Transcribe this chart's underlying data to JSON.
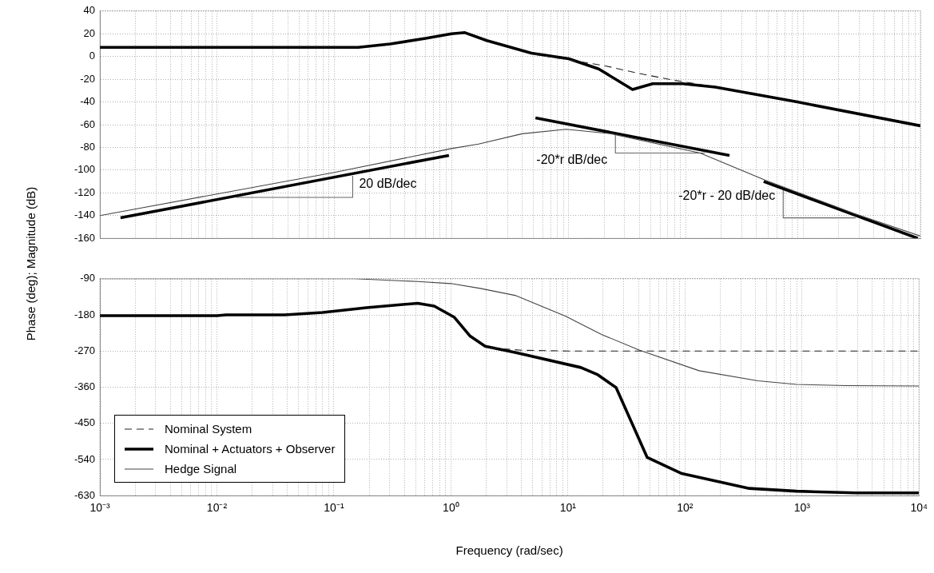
{
  "chart_data": [
    {
      "type": "line",
      "ylabel": "Phase (deg); Magnitude (dB)",
      "log": "x",
      "grid": true,
      "marker": "none",
      "tick_labels": "y",
      "xlim": [
        0.001,
        10000
      ],
      "xticks": [
        {
          "value": 0.001,
          "label": null
        },
        {
          "value": 0.002,
          "label": null
        },
        {
          "value": 0.003,
          "label": null
        },
        {
          "value": 0.004,
          "label": null
        },
        {
          "value": 0.005,
          "label": null
        },
        {
          "value": 0.006,
          "label": null
        },
        {
          "value": 0.007,
          "label": null
        },
        {
          "value": 0.008,
          "label": null
        },
        {
          "value": 0.009,
          "label": null
        },
        {
          "value": 0.01,
          "label": null
        },
        {
          "value": 0.02,
          "label": null
        },
        {
          "value": 0.03,
          "label": null
        },
        {
          "value": 0.04,
          "label": null
        },
        {
          "value": 0.05,
          "label": null
        },
        {
          "value": 0.06,
          "label": null
        },
        {
          "value": 0.07,
          "label": null
        },
        {
          "value": 0.08,
          "label": null
        },
        {
          "value": 0.09,
          "label": null
        },
        {
          "value": 0.1,
          "label": null
        },
        {
          "value": 0.2,
          "label": null
        },
        {
          "value": 0.3,
          "label": null
        },
        {
          "value": 0.4,
          "label": null
        },
        {
          "value": 0.5,
          "label": null
        },
        {
          "value": 0.6,
          "label": null
        },
        {
          "value": 0.7,
          "label": null
        },
        {
          "value": 0.8,
          "label": null
        },
        {
          "value": 0.9,
          "label": null
        },
        {
          "value": 1,
          "label": null
        },
        {
          "value": 2,
          "label": null
        },
        {
          "value": 3,
          "label": null
        },
        {
          "value": 4,
          "label": null
        },
        {
          "value": 5,
          "label": null
        },
        {
          "value": 6,
          "label": null
        },
        {
          "value": 7,
          "label": null
        },
        {
          "value": 8,
          "label": null
        },
        {
          "value": 9,
          "label": null
        },
        {
          "value": 10,
          "label": null
        },
        {
          "value": 20,
          "label": null
        },
        {
          "value": 30,
          "label": null
        },
        {
          "value": 40,
          "label": null
        },
        {
          "value": 50,
          "label": null
        },
        {
          "value": 60,
          "label": null
        },
        {
          "value": 70,
          "label": null
        },
        {
          "value": 80,
          "label": null
        },
        {
          "value": 90,
          "label": null
        },
        {
          "value": 100,
          "label": null
        },
        {
          "value": 200,
          "label": null
        },
        {
          "value": 300,
          "label": null
        },
        {
          "value": 400,
          "label": null
        },
        {
          "value": 500,
          "label": null
        },
        {
          "value": 600,
          "label": null
        },
        {
          "value": 700,
          "label": null
        },
        {
          "value": 800,
          "label": null
        },
        {
          "value": 900,
          "label": null
        },
        {
          "value": 1000,
          "label": null
        },
        {
          "value": 2000,
          "label": null
        },
        {
          "value": 3000,
          "label": null
        },
        {
          "value": 4000,
          "label": null
        },
        {
          "value": 5000,
          "label": null
        },
        {
          "value": 6000,
          "label": null
        },
        {
          "value": 7000,
          "label": null
        },
        {
          "value": 8000,
          "label": null
        },
        {
          "value": 9000,
          "label": null
        },
        {
          "value": 10000,
          "label": null
        }
      ],
      "ylim": [
        -160,
        40
      ],
      "yticks": [
        -160,
        -140,
        -120,
        -100,
        -80,
        -60,
        -40,
        -20,
        0,
        20,
        40
      ],
      "annotations": [
        {
          "text": "20 dB/dec",
          "x": 0.1435,
          "y": -105
        },
        {
          "text": "-20*r dB/dec",
          "x": 25,
          "y": -85
        },
        {
          "text": "-20*r - 20 dB/dec",
          "x": 675,
          "y": -117
        }
      ],
      "series": [
        {
          "color": "#222222",
          "line_style": "dashed",
          "x": [
            5,
            10,
            20,
            40,
            80,
            140
          ],
          "values": [
            2,
            -3,
            -8,
            -15,
            -21,
            -25
          ]
        },
        {
          "color": "#000000",
          "x": [
            0.001,
            0.01,
            0.1,
            0.16,
            0.3,
            0.6,
            1.0,
            1.3,
            2.0,
            4.8,
            10,
            18,
            35,
            52,
            94,
            178,
            890,
            10000
          ],
          "values": [
            8,
            8,
            8,
            8,
            11,
            16,
            20,
            21,
            14,
            3,
            -2,
            -11,
            -29,
            -24,
            -24,
            -27,
            -40,
            -61
          ]
        },
        {
          "color": "#444444",
          "x": [
            0.001,
            0.01,
            0.1,
            1,
            1.7,
            4,
            9.5,
            23,
            132,
            480,
            2700,
            10000
          ],
          "values": [
            -140,
            -121,
            -102,
            -81,
            -77,
            -68,
            -64,
            -68,
            -85,
            -109,
            -138,
            -158
          ]
        },
        {
          "color": "#000000",
          "x": [
            0.0015,
            0.95
          ],
          "values": [
            -142,
            -87
          ]
        },
        {
          "color": "#000000",
          "x": [
            5.2,
            235
          ],
          "values": [
            -54,
            -87
          ]
        },
        {
          "color": "#000000",
          "x": [
            460,
            9500
          ],
          "values": [
            -110,
            -160
          ]
        },
        {
          "color": "#666666",
          "x": [
            0.0146,
            0.1435,
            0.1435
          ],
          "values": [
            -124,
            -124,
            -105
          ]
        },
        {
          "color": "#666666",
          "x": [
            25,
            25,
            145
          ],
          "values": [
            -68,
            -85,
            -85
          ]
        },
        {
          "color": "#666666",
          "x": [
            675,
            675,
            2800
          ],
          "values": [
            -117,
            -142,
            -142
          ]
        }
      ]
    },
    {
      "type": "line",
      "xlabel": "Frequency (rad/sec)",
      "log": "x",
      "grid": true,
      "marker": "none",
      "legend": "bottom left",
      "xlim": [
        0.001,
        10000
      ],
      "xticks": [
        {
          "value": 0.001,
          "label": "10⁻³"
        },
        {
          "value": 0.002,
          "label": null
        },
        {
          "value": 0.003,
          "label": null
        },
        {
          "value": 0.004,
          "label": null
        },
        {
          "value": 0.005,
          "label": null
        },
        {
          "value": 0.006,
          "label": null
        },
        {
          "value": 0.007,
          "label": null
        },
        {
          "value": 0.008,
          "label": null
        },
        {
          "value": 0.009,
          "label": null
        },
        {
          "value": 0.01,
          "label": "10⁻²"
        },
        {
          "value": 0.02,
          "label": null
        },
        {
          "value": 0.03,
          "label": null
        },
        {
          "value": 0.04,
          "label": null
        },
        {
          "value": 0.05,
          "label": null
        },
        {
          "value": 0.06,
          "label": null
        },
        {
          "value": 0.07,
          "label": null
        },
        {
          "value": 0.08,
          "label": null
        },
        {
          "value": 0.09,
          "label": null
        },
        {
          "value": 0.1,
          "label": "10⁻¹"
        },
        {
          "value": 0.2,
          "label": null
        },
        {
          "value": 0.3,
          "label": null
        },
        {
          "value": 0.4,
          "label": null
        },
        {
          "value": 0.5,
          "label": null
        },
        {
          "value": 0.6,
          "label": null
        },
        {
          "value": 0.7,
          "label": null
        },
        {
          "value": 0.8,
          "label": null
        },
        {
          "value": 0.9,
          "label": null
        },
        {
          "value": 1,
          "label": "10⁰"
        },
        {
          "value": 2,
          "label": null
        },
        {
          "value": 3,
          "label": null
        },
        {
          "value": 4,
          "label": null
        },
        {
          "value": 5,
          "label": null
        },
        {
          "value": 6,
          "label": null
        },
        {
          "value": 7,
          "label": null
        },
        {
          "value": 8,
          "label": null
        },
        {
          "value": 9,
          "label": null
        },
        {
          "value": 10,
          "label": "10¹"
        },
        {
          "value": 20,
          "label": null
        },
        {
          "value": 30,
          "label": null
        },
        {
          "value": 40,
          "label": null
        },
        {
          "value": 50,
          "label": null
        },
        {
          "value": 60,
          "label": null
        },
        {
          "value": 70,
          "label": null
        },
        {
          "value": 80,
          "label": null
        },
        {
          "value": 90,
          "label": null
        },
        {
          "value": 100,
          "label": "10²"
        },
        {
          "value": 200,
          "label": null
        },
        {
          "value": 300,
          "label": null
        },
        {
          "value": 400,
          "label": null
        },
        {
          "value": 500,
          "label": null
        },
        {
          "value": 600,
          "label": null
        },
        {
          "value": 700,
          "label": null
        },
        {
          "value": 800,
          "label": null
        },
        {
          "value": 900,
          "label": null
        },
        {
          "value": 1000,
          "label": "10³"
        },
        {
          "value": 2000,
          "label": null
        },
        {
          "value": 3000,
          "label": null
        },
        {
          "value": 4000,
          "label": null
        },
        {
          "value": 5000,
          "label": null
        },
        {
          "value": 6000,
          "label": null
        },
        {
          "value": 7000,
          "label": null
        },
        {
          "value": 8000,
          "label": null
        },
        {
          "value": 9000,
          "label": null
        },
        {
          "value": 10000,
          "label": "10⁴"
        }
      ],
      "ylim": [
        -630,
        -90
      ],
      "yticks": [
        -630,
        -540,
        -450,
        -360,
        -270,
        -180,
        -90
      ],
      "series": [
        {
          "name": "Nominal System",
          "color": "#222222",
          "line_style": "dashed",
          "x": [
            2.2,
            4,
            10,
            100,
            1000,
            10000
          ],
          "values": [
            -262,
            -268,
            -270,
            -270,
            -270,
            -270
          ]
        },
        {
          "name": "Nominal + Actuators + Observer",
          "color": "#000000",
          "x": [
            0.001,
            0.01,
            0.012,
            0.038,
            0.08,
            0.19,
            0.52,
            0.72,
            1.07,
            1.45,
            1.96,
            3.6,
            12.9,
            18,
            25.8,
            47.6,
            94,
            355,
            900,
            2900,
            10000
          ],
          "values": [
            -182,
            -182,
            -180,
            -180,
            -174,
            -162,
            -151,
            -158,
            -186,
            -232,
            -258,
            -274,
            -311,
            -329,
            -361,
            -535,
            -575,
            -612,
            -619,
            -623,
            -623
          ]
        },
        {
          "name": "Hedge Signal",
          "color": "#444444",
          "x": [
            0.001,
            0.15,
            0.52,
            1.0,
            1.78,
            3.6,
            9.5,
            19.5,
            41,
            132,
            420,
            900,
            2400,
            10000
          ],
          "values": [
            -90,
            -90,
            -97,
            -102,
            -114,
            -132,
            -183,
            -229,
            -268,
            -319,
            -344,
            -353,
            -356,
            -357
          ]
        }
      ]
    }
  ]
}
